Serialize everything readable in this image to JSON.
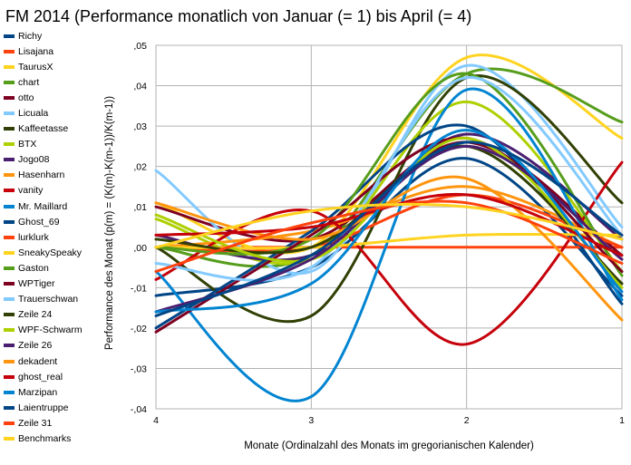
{
  "chart_data": {
    "type": "line",
    "title": "FM 2014 (Performance monatlich von Januar (= 1) bis April (= 4)",
    "xlabel": "Monate (Ordinalzahl des Monats im gregorianischen Kalender)",
    "ylabel": "Performance des Monat (p(m) = (K(m)-K(m-1))/K(m-1))",
    "x": [
      4,
      3,
      2,
      1
    ],
    "xlim": [
      4,
      1
    ],
    "ylim": [
      -0.04,
      0.05
    ],
    "y_ticks": [
      -0.04,
      -0.03,
      -0.02,
      -0.01,
      0,
      0.01,
      0.02,
      0.03,
      0.04,
      0.05
    ],
    "y_tick_labels": [
      "-,04",
      "-,03",
      "-,02",
      "-,01",
      ",00",
      ",01",
      ",02",
      ",03",
      ",04",
      ",05"
    ],
    "x_tick_labels": [
      "4",
      "3",
      "2",
      "1"
    ],
    "grid": true,
    "smooth": true,
    "legend_position": "left",
    "series": [
      {
        "name": "Richy",
        "color": "#004586",
        "values": [
          -0.012,
          -0.005,
          0.022,
          -0.012
        ]
      },
      {
        "name": "Lisajana",
        "color": "#ff420e",
        "values": [
          0.0,
          0.0,
          0.0,
          0.0
        ]
      },
      {
        "name": "TaurusX",
        "color": "#ffd320",
        "values": [
          0.011,
          0.0,
          0.047,
          0.027
        ]
      },
      {
        "name": "chart",
        "color": "#579d1c",
        "values": [
          0.0,
          -0.002,
          0.043,
          0.031
        ]
      },
      {
        "name": "otto",
        "color": "#7e0021",
        "values": [
          0.01,
          0.002,
          0.026,
          -0.002
        ]
      },
      {
        "name": "Licuala",
        "color": "#83caff",
        "values": [
          0.019,
          -0.006,
          0.045,
          0.005
        ]
      },
      {
        "name": "Kaffeetasse",
        "color": "#314004",
        "values": [
          0.0,
          -0.017,
          0.042,
          0.011
        ]
      },
      {
        "name": "BTX",
        "color": "#aecf00",
        "values": [
          0.007,
          -0.003,
          0.036,
          -0.006
        ]
      },
      {
        "name": "Jogo08",
        "color": "#4b1f6f",
        "values": [
          0.003,
          -0.002,
          0.028,
          0.002
        ]
      },
      {
        "name": "Hasenharn",
        "color": "#ff950e",
        "values": [
          0.0,
          0.004,
          0.015,
          0.0
        ]
      },
      {
        "name": "vanity",
        "color": "#c5000b",
        "values": [
          -0.008,
          0.009,
          -0.024,
          0.021
        ]
      },
      {
        "name": "Mr. Maillard",
        "color": "#0084d1",
        "values": [
          -0.006,
          -0.037,
          0.039,
          -0.013
        ]
      },
      {
        "name": "Ghost_69",
        "color": "#004586",
        "values": [
          -0.02,
          0.004,
          0.03,
          -0.014
        ]
      },
      {
        "name": "lurklurk",
        "color": "#ff420e",
        "values": [
          0.0,
          0.0,
          0.013,
          0.0
        ]
      },
      {
        "name": "SneakySpeaky",
        "color": "#ffd320",
        "values": [
          0.0,
          0.0,
          0.003,
          0.003
        ]
      },
      {
        "name": "Gaston",
        "color": "#579d1c",
        "values": [
          0.0,
          0.002,
          0.043,
          -0.007
        ]
      },
      {
        "name": "WPTiger",
        "color": "#7e0021",
        "values": [
          -0.021,
          0.003,
          0.027,
          -0.006
        ]
      },
      {
        "name": "Trauerschwan",
        "color": "#83caff",
        "values": [
          -0.004,
          -0.005,
          0.042,
          0.003
        ]
      },
      {
        "name": "Zeile 24",
        "color": "#314004",
        "values": [
          0.002,
          0.0,
          0.025,
          -0.009
        ]
      },
      {
        "name": "WPF-Schwarm",
        "color": "#aecf00",
        "values": [
          0.008,
          -0.003,
          0.027,
          -0.01
        ]
      },
      {
        "name": "Zeile 26",
        "color": "#4b1f6f",
        "values": [
          -0.016,
          -0.003,
          0.025,
          -0.003
        ]
      },
      {
        "name": "dekadent",
        "color": "#ff950e",
        "values": [
          0.011,
          0.002,
          0.017,
          -0.018
        ]
      },
      {
        "name": "ghost_real",
        "color": "#c5000b",
        "values": [
          0.003,
          0.005,
          0.013,
          -0.002
        ]
      },
      {
        "name": "Marzipan",
        "color": "#0084d1",
        "values": [
          -0.016,
          -0.009,
          0.029,
          -0.011
        ]
      },
      {
        "name": "Laientruppe",
        "color": "#004586",
        "values": [
          -0.017,
          -0.002,
          0.026,
          0.003
        ]
      },
      {
        "name": "Zeile 31",
        "color": "#ff420e",
        "values": [
          -0.006,
          0.006,
          0.011,
          -0.004
        ]
      },
      {
        "name": "Benchmarks",
        "color": "#ffd320",
        "values": [
          0.0,
          0.009,
          0.01,
          0.002
        ]
      }
    ]
  }
}
